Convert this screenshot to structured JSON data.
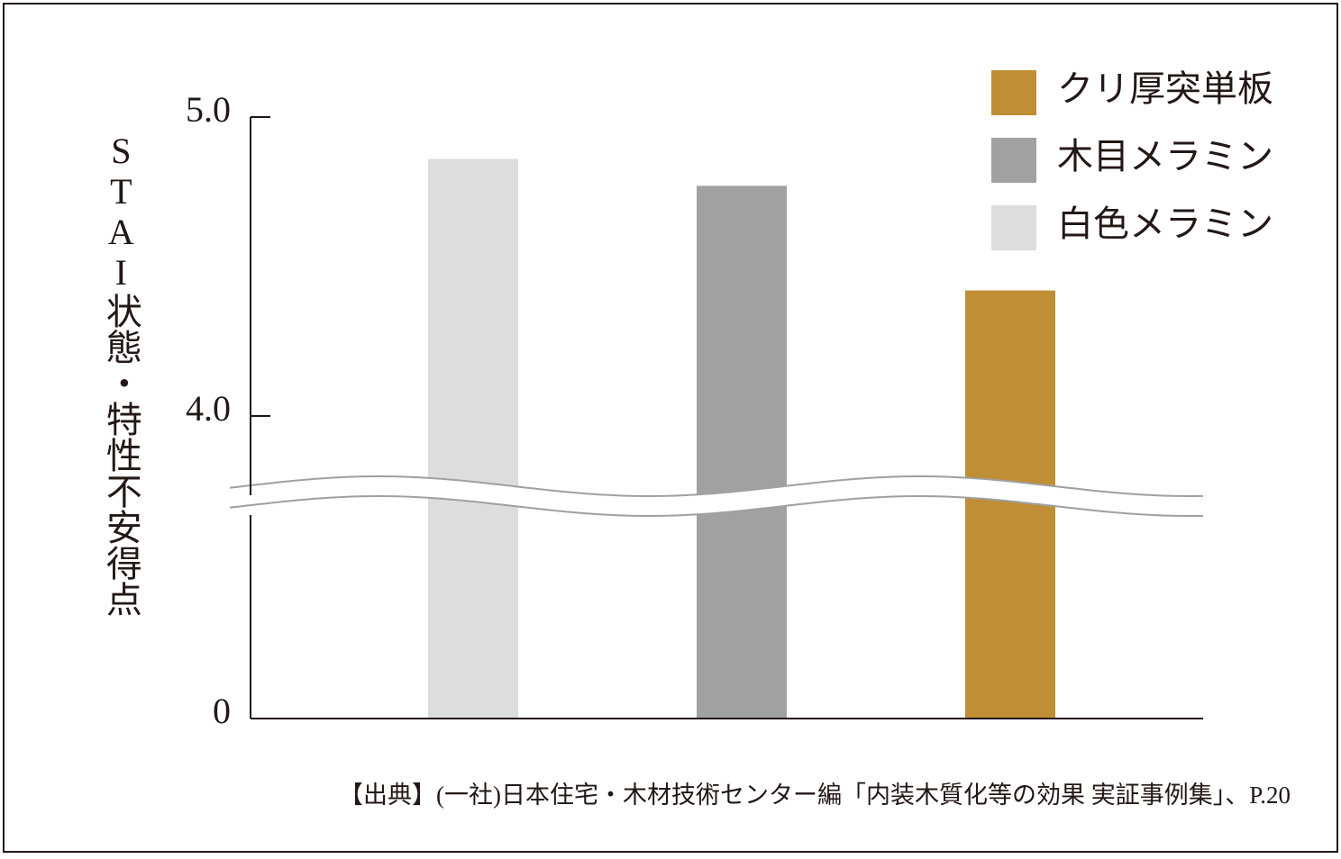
{
  "chart_data": {
    "type": "bar",
    "y_label": "STAI状態・特性不安得点",
    "source": "【出典】(一社)日本住宅・木材技術センター編「内装木質化等の効果 実証事例集」、P.20",
    "categories": [
      null,
      null,
      null
    ],
    "series": [
      {
        "name": "クリ厚突単板",
        "color": "#c08e34",
        "values": [
          null,
          null,
          4.42
        ]
      },
      {
        "name": "木目メラミン",
        "color": "#a0a1a1",
        "values": [
          null,
          4.77,
          null
        ]
      },
      {
        "name": "白色メラミン",
        "color": "#dcdddd",
        "values": [
          4.86,
          null,
          null
        ]
      }
    ],
    "ylim": [
      0,
      5
    ],
    "yticks": [
      0,
      {
        "value": 4,
        "label": "4.0"
      },
      {
        "value": 5,
        "label": "5.0"
      }
    ],
    "y_break": 3.7,
    "legend": "upper right"
  }
}
